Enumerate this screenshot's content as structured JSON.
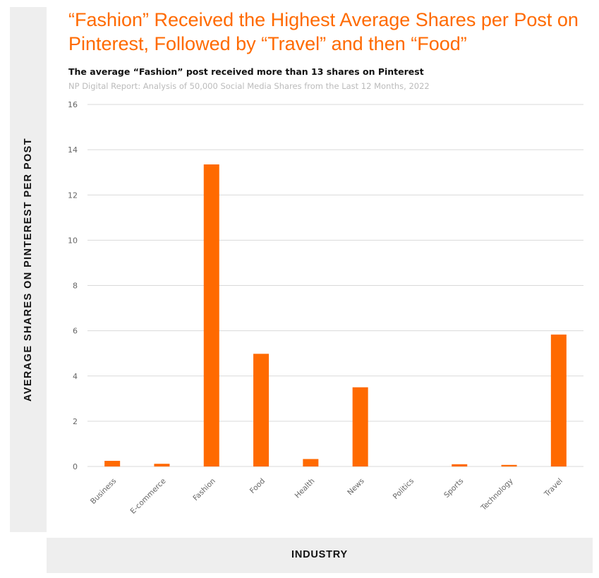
{
  "header": {
    "title": "“Fashion” Received the Highest Average Shares per Post on Pinterest, Followed by “Travel” and then “Food”",
    "subtitle": "The average “Fashion” post received more than 13 shares on Pinterest",
    "source": "NP Digital Report: Analysis of 50,000 Social Media Shares from the Last 12 Months, 2022"
  },
  "chart_data": {
    "type": "bar",
    "title": "“Fashion” Received the Highest Average Shares per Post on Pinterest, Followed by “Travel” and then “Food”",
    "subtitle": "The average “Fashion” post received more than 13 shares on Pinterest",
    "xlabel": "INDUSTRY",
    "ylabel": "AVERAGE SHARES ON PINTEREST PER POST",
    "categories": [
      "Business",
      "E-commerce",
      "Fashion",
      "Food",
      "Health",
      "News",
      "Politics",
      "Sports",
      "Technology",
      "Travel"
    ],
    "values": [
      0.25,
      0.12,
      13.35,
      4.98,
      0.33,
      3.5,
      0,
      0.1,
      0.07,
      5.83
    ],
    "ylim": [
      0,
      16
    ],
    "yticks": [
      "0",
      "2",
      "4",
      "6",
      "8",
      "10",
      "12",
      "14",
      "16"
    ],
    "grid": true,
    "legend": "none",
    "bar_color": "#ff6a00"
  }
}
